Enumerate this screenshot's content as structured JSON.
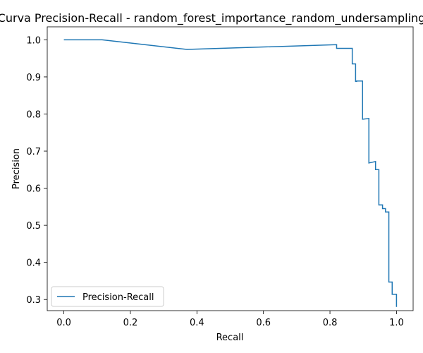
{
  "chart_data": {
    "type": "line",
    "title": "Curva Precision-Recall - random_forest_importance_random_undersampling",
    "xlabel": "Recall",
    "ylabel": "Precision",
    "xlim": [
      -0.05,
      1.05
    ],
    "ylim": [
      0.27,
      1.035
    ],
    "xticks": [
      0.0,
      0.2,
      0.4,
      0.6,
      0.8,
      1.0
    ],
    "xtick_labels": [
      "0.0",
      "0.2",
      "0.4",
      "0.6",
      "0.8",
      "1.0"
    ],
    "yticks": [
      0.3,
      0.4,
      0.5,
      0.6,
      0.7,
      0.8,
      0.9,
      1.0
    ],
    "ytick_labels": [
      "0.3",
      "0.4",
      "0.5",
      "0.6",
      "0.7",
      "0.8",
      "0.9",
      "1.0"
    ],
    "grid": false,
    "legend": {
      "position": "lower-left",
      "entries": [
        "Precision-Recall"
      ]
    },
    "series": [
      {
        "name": "Precision-Recall",
        "color": "#1f77b4",
        "x": [
          0.0,
          0.115,
          0.37,
          0.82,
          0.82,
          0.867,
          0.867,
          0.877,
          0.877,
          0.88,
          0.88,
          0.898,
          0.898,
          0.917,
          0.917,
          0.937,
          0.937,
          0.947,
          0.947,
          0.958,
          0.958,
          0.967,
          0.967,
          0.977,
          0.977,
          0.987,
          0.987,
          1.0,
          1.0
        ],
        "y": [
          1.0,
          1.0,
          0.974,
          0.987,
          0.977,
          0.977,
          0.935,
          0.935,
          0.888,
          0.888,
          0.889,
          0.889,
          0.786,
          0.788,
          0.668,
          0.672,
          0.65,
          0.65,
          0.555,
          0.555,
          0.545,
          0.545,
          0.536,
          0.536,
          0.347,
          0.347,
          0.314,
          0.314,
          0.28
        ]
      }
    ]
  }
}
